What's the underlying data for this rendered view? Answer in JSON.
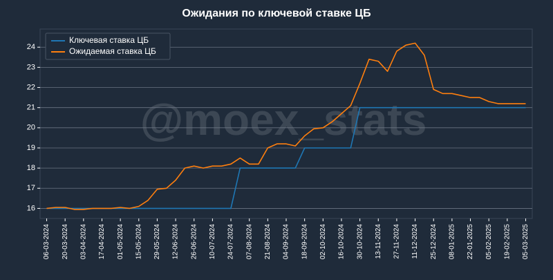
{
  "chart_data": {
    "type": "line",
    "title": "Ожидания по ключевой ставке ЦБ",
    "watermark": "@moex_stats",
    "x": [
      "06-03-2024",
      "13-03-2024",
      "20-03-2024",
      "27-03-2024",
      "03-04-2024",
      "10-04-2024",
      "17-04-2024",
      "24-04-2024",
      "01-05-2024",
      "08-05-2024",
      "15-05-2024",
      "22-05-2024",
      "29-05-2024",
      "05-06-2024",
      "12-06-2024",
      "19-06-2024",
      "26-06-2024",
      "03-07-2024",
      "10-07-2024",
      "17-07-2024",
      "24-07-2024",
      "31-07-2024",
      "07-08-2024",
      "14-08-2024",
      "21-08-2024",
      "28-08-2024",
      "04-09-2024",
      "11-09-2024",
      "18-09-2024",
      "25-09-2024",
      "02-10-2024",
      "09-10-2024",
      "16-10-2024",
      "23-10-2024",
      "30-10-2024",
      "06-11-2024",
      "13-11-2024",
      "20-11-2024",
      "27-11-2024",
      "04-12-2024",
      "11-12-2024",
      "18-12-2024",
      "25-12-2024",
      "01-01-2025",
      "08-01-2025",
      "15-01-2025",
      "22-01-2025",
      "29-01-2025",
      "05-02-2025",
      "12-02-2025",
      "19-02-2025",
      "26-02-2025",
      "05-03-2025"
    ],
    "series": [
      {
        "name": "Ключевая ставка ЦБ",
        "color": "#1f77b4",
        "values": [
          16,
          16,
          16,
          16,
          16,
          16,
          16,
          16,
          16,
          16,
          16,
          16,
          16,
          16,
          16,
          16,
          16,
          16,
          16,
          16,
          16,
          18,
          18,
          18,
          18,
          18,
          18,
          18,
          19,
          19,
          19,
          19,
          19,
          19,
          21,
          21,
          21,
          21,
          21,
          21,
          21,
          21,
          21,
          21,
          21,
          21,
          21,
          21,
          21,
          21,
          21,
          21,
          21
        ]
      },
      {
        "name": "Ожидаемая ставка ЦБ",
        "color": "#ff7f0e",
        "values": [
          16.0,
          16.05,
          16.05,
          15.95,
          15.95,
          16.0,
          16.0,
          16.0,
          16.05,
          16.0,
          16.1,
          16.4,
          16.95,
          17.0,
          17.4,
          18.0,
          18.1,
          18.0,
          18.1,
          18.1,
          18.2,
          18.5,
          18.2,
          18.2,
          19.0,
          19.2,
          19.2,
          19.1,
          19.6,
          19.95,
          20.0,
          20.3,
          20.7,
          21.1,
          22.2,
          23.4,
          23.3,
          22.8,
          23.8,
          24.1,
          24.2,
          23.6,
          21.9,
          21.7,
          21.7,
          21.6,
          21.5,
          21.5,
          21.3,
          21.2,
          21.2,
          21.2,
          21.2
        ]
      }
    ],
    "xlim": [
      "01-03-2024",
      "10-03-2025"
    ],
    "xticks": [
      "06-03-2024",
      "20-03-2024",
      "03-04-2024",
      "17-04-2024",
      "01-05-2024",
      "15-05-2024",
      "29-05-2024",
      "12-06-2024",
      "26-06-2024",
      "10-07-2024",
      "24-07-2024",
      "07-08-2024",
      "21-08-2024",
      "04-09-2024",
      "18-09-2024",
      "02-10-2024",
      "16-10-2024",
      "30-10-2024",
      "13-11-2024",
      "27-11-2024",
      "11-12-2024",
      "25-12-2024",
      "08-01-2025",
      "22-01-2025",
      "05-02-2025",
      "19-02-2025",
      "05-03-2025"
    ],
    "ylim": [
      15.5,
      24.9
    ],
    "yticks": [
      16,
      17,
      18,
      19,
      20,
      21,
      22,
      23,
      24
    ],
    "grid": true,
    "legend": "upper-left"
  }
}
